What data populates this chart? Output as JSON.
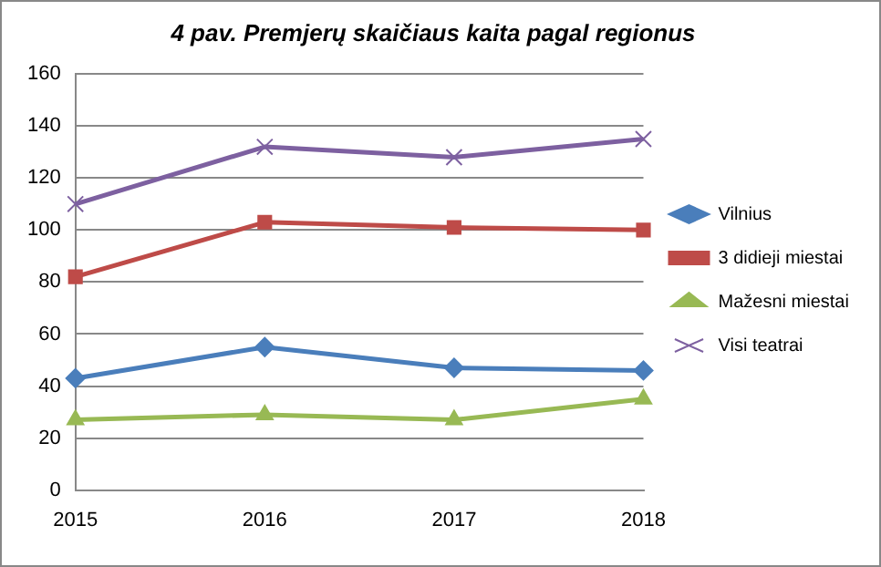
{
  "chart_data": {
    "type": "line",
    "title": "4 pav. Premjerų skaičiaus kaita pagal regionus",
    "categories": [
      "2015",
      "2016",
      "2017",
      "2018"
    ],
    "series": [
      {
        "name": "Vilnius",
        "color": "#4a7ebb",
        "marker": "diamond",
        "values": [
          43,
          55,
          47,
          46
        ]
      },
      {
        "name": "3 didieji miestai",
        "color": "#be4b48",
        "marker": "square",
        "values": [
          82,
          103,
          101,
          100
        ]
      },
      {
        "name": "Mažesni miestai",
        "color": "#98b954",
        "marker": "triangle",
        "values": [
          27,
          29,
          27,
          35
        ]
      },
      {
        "name": "Visi teatrai",
        "color": "#7d60a0",
        "marker": "cross",
        "values": [
          110,
          132,
          128,
          135
        ]
      }
    ],
    "ylim": [
      0,
      160
    ],
    "yticks": [
      0,
      20,
      40,
      60,
      80,
      100,
      120,
      140,
      160
    ],
    "grid": "y",
    "legend": "right"
  }
}
